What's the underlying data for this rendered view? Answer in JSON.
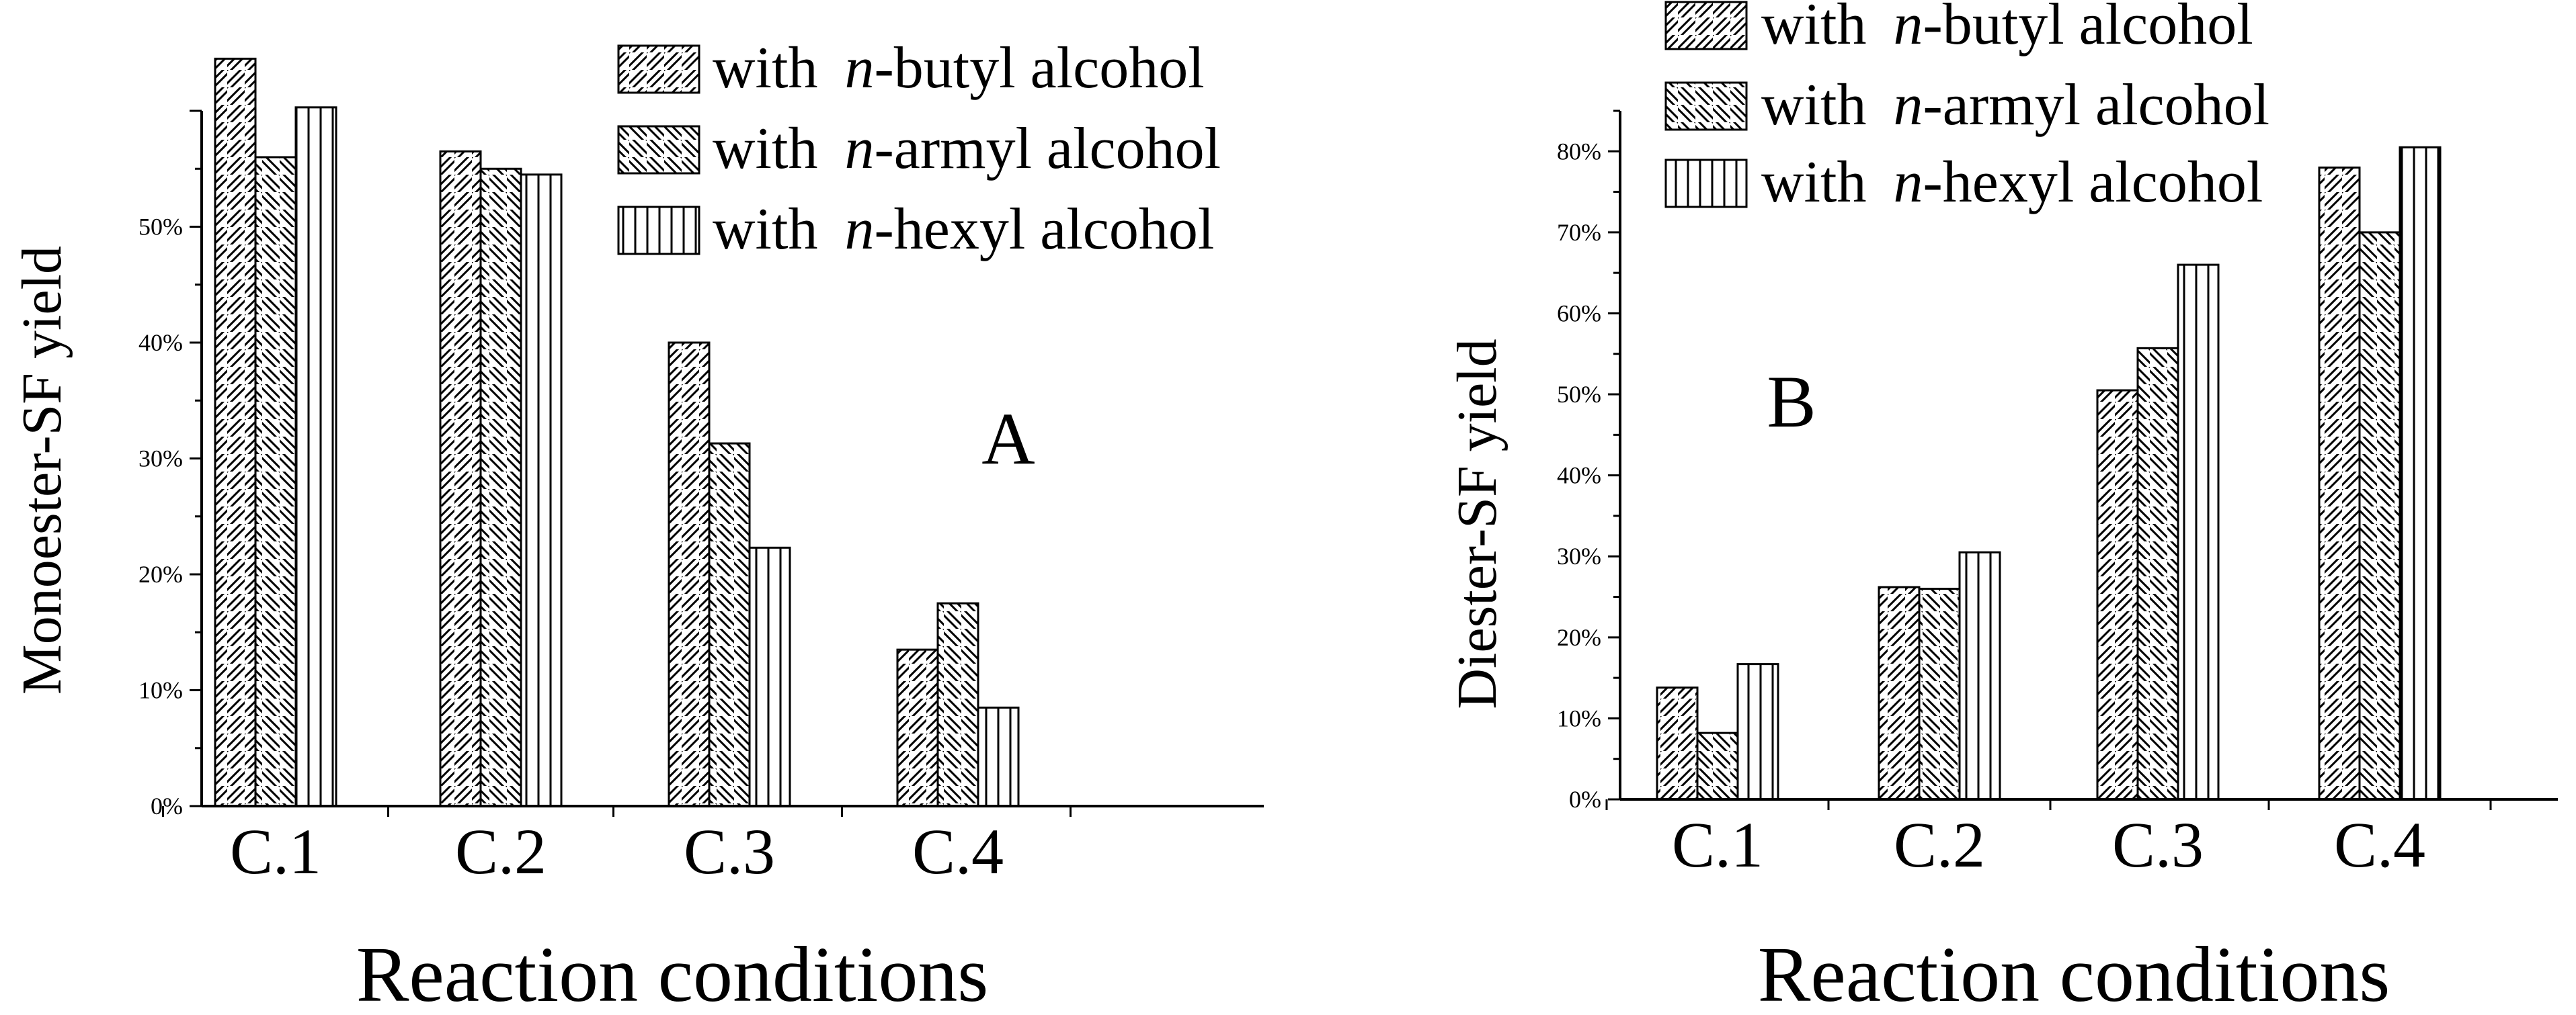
{
  "chart_data": [
    {
      "type": "bar",
      "panel_label": "A",
      "title": "",
      "xlabel": "Reaction conditions",
      "ylabel": "Monoester-SF yield",
      "categories": [
        "C.1",
        "C.2",
        "C.3",
        "C.4"
      ],
      "ylim": [
        0,
        60
      ],
      "yticks": [
        0,
        10,
        20,
        30,
        40,
        50
      ],
      "ytick_labels": [
        "0%",
        "10%",
        "20%",
        "30%",
        "40%",
        "50%"
      ],
      "series": [
        {
          "name": "with n-butyl alcohol",
          "prefix": "with ",
          "italic": "n",
          "suffix": "-butyl alcohol",
          "hatch": "forward",
          "values": [
            64.5,
            56.5,
            40.0,
            13.5
          ]
        },
        {
          "name": "with n-armyl alcohol",
          "prefix": "with ",
          "italic": "n",
          "suffix": "-armyl alcohol",
          "hatch": "backward",
          "values": [
            56.0,
            55.0,
            31.3,
            17.5
          ]
        },
        {
          "name": "with n-hexyl alcohol",
          "prefix": "with ",
          "italic": "n",
          "suffix": "-hexyl alcohol",
          "hatch": "vertical",
          "values": [
            60.3,
            54.5,
            22.3,
            8.5
          ]
        }
      ],
      "legend": "top-right",
      "grid": false
    },
    {
      "type": "bar",
      "panel_label": "B",
      "title": "",
      "xlabel": "Reaction conditions",
      "ylabel": "Diester-SF yield",
      "categories": [
        "C.1",
        "C.2",
        "C.3",
        "C.4"
      ],
      "ylim": [
        0,
        85
      ],
      "yticks": [
        0,
        10,
        20,
        30,
        40,
        50,
        60,
        70,
        80
      ],
      "ytick_labels": [
        "0%",
        "10%",
        "20%",
        "30%",
        "40%",
        "50%",
        "60%",
        "70%",
        "80%"
      ],
      "series": [
        {
          "name": "with n-butyl alcohol",
          "prefix": "with ",
          "italic": "n",
          "suffix": "-butyl alcohol",
          "hatch": "forward",
          "values": [
            13.8,
            26.2,
            50.5,
            78.0
          ]
        },
        {
          "name": "with n-armyl alcohol",
          "prefix": "with ",
          "italic": "n",
          "suffix": "-armyl alcohol",
          "hatch": "backward",
          "values": [
            8.2,
            26.0,
            55.7,
            70.0
          ]
        },
        {
          "name": "with n-hexyl alcohol",
          "prefix": "with ",
          "italic": "n",
          "suffix": "-hexyl alcohol",
          "hatch": "vertical",
          "values": [
            16.7,
            30.5,
            66.0,
            80.5
          ]
        }
      ],
      "legend": "top-left",
      "grid": false
    }
  ]
}
